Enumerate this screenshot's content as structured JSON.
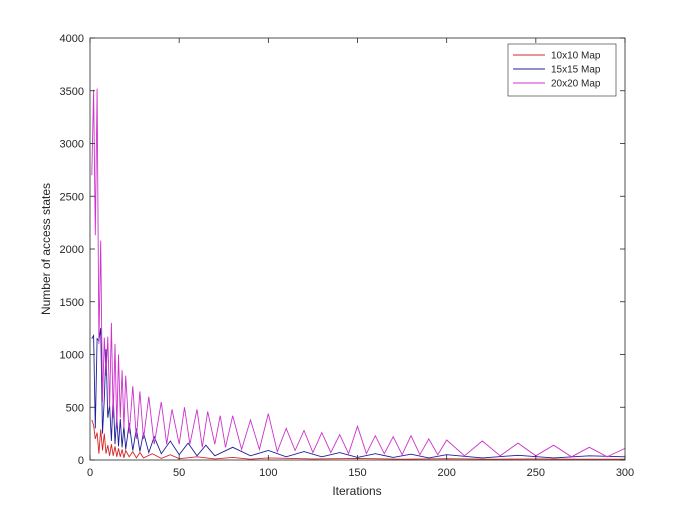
{
  "chart_data": {
    "type": "line",
    "title": "",
    "xlabel": "Iterations",
    "ylabel": "Number of access states",
    "xlim": [
      0,
      300
    ],
    "ylim": [
      0,
      4000
    ],
    "xticks": [
      "0",
      "50",
      "100",
      "150",
      "200",
      "250",
      "300"
    ],
    "yticks": [
      "0",
      "500",
      "1000",
      "1500",
      "2000",
      "2500",
      "3000",
      "3500",
      "4000"
    ],
    "grid": false,
    "legend_position": "top-right",
    "series": [
      {
        "name": "10x10 Map",
        "color": "#d62728",
        "x": [
          1,
          2,
          3,
          4,
          5,
          6,
          7,
          8,
          9,
          10,
          11,
          12,
          13,
          14,
          15,
          16,
          17,
          18,
          19,
          20,
          22,
          24,
          26,
          28,
          30,
          35,
          40,
          45,
          50,
          60,
          70,
          80,
          90,
          100,
          125,
          150,
          175,
          200,
          225,
          250,
          275,
          300
        ],
        "y": [
          380,
          330,
          200,
          260,
          60,
          290,
          90,
          250,
          60,
          140,
          40,
          150,
          40,
          130,
          30,
          110,
          30,
          100,
          20,
          90,
          30,
          80,
          20,
          70,
          20,
          60,
          15,
          50,
          12,
          30,
          10,
          25,
          8,
          20,
          10,
          15,
          8,
          12,
          8,
          10,
          8,
          8
        ]
      },
      {
        "name": "15x15 Map",
        "color": "#1f1f9a",
        "x": [
          1,
          2,
          3,
          4,
          5,
          6,
          7,
          8,
          9,
          10,
          11,
          12,
          13,
          14,
          15,
          16,
          17,
          18,
          19,
          20,
          22,
          24,
          26,
          28,
          30,
          33,
          36,
          40,
          45,
          50,
          55,
          60,
          65,
          70,
          80,
          90,
          100,
          110,
          120,
          130,
          140,
          150,
          160,
          170,
          180,
          190,
          200,
          220,
          240,
          260,
          280,
          300
        ],
        "y": [
          1150,
          1180,
          300,
          1150,
          1130,
          1250,
          250,
          580,
          1050,
          400,
          520,
          180,
          620,
          150,
          410,
          130,
          390,
          120,
          320,
          100,
          350,
          90,
          300,
          80,
          260,
          70,
          220,
          60,
          180,
          50,
          160,
          40,
          140,
          40,
          120,
          40,
          90,
          30,
          80,
          30,
          70,
          25,
          60,
          25,
          55,
          20,
          50,
          20,
          45,
          20,
          40,
          30
        ]
      },
      {
        "name": "20x20 Map",
        "color": "#cc33cc",
        "x": [
          1,
          2,
          3,
          4,
          5,
          6,
          7,
          8,
          9,
          10,
          11,
          12,
          13,
          14,
          15,
          16,
          17,
          18,
          19,
          20,
          22,
          24,
          26,
          28,
          30,
          33,
          36,
          40,
          43,
          46,
          50,
          53,
          56,
          60,
          63,
          66,
          70,
          73,
          76,
          80,
          85,
          90,
          95,
          100,
          105,
          110,
          115,
          120,
          125,
          130,
          135,
          140,
          145,
          150,
          155,
          160,
          165,
          170,
          175,
          180,
          185,
          190,
          195,
          200,
          210,
          220,
          230,
          240,
          250,
          260,
          270,
          280,
          290,
          300
        ],
        "y": [
          2700,
          3510,
          2130,
          3520,
          1100,
          2080,
          550,
          1160,
          800,
          1170,
          500,
          1300,
          400,
          1100,
          300,
          1000,
          400,
          850,
          300,
          800,
          250,
          700,
          200,
          650,
          200,
          600,
          150,
          550,
          150,
          480,
          150,
          500,
          150,
          480,
          120,
          460,
          150,
          420,
          120,
          420,
          100,
          380,
          100,
          440,
          80,
          300,
          90,
          280,
          70,
          260,
          70,
          240,
          60,
          320,
          60,
          230,
          60,
          220,
          50,
          230,
          50,
          200,
          50,
          190,
          40,
          180,
          40,
          160,
          40,
          140,
          30,
          120,
          30,
          110
        ]
      }
    ]
  }
}
